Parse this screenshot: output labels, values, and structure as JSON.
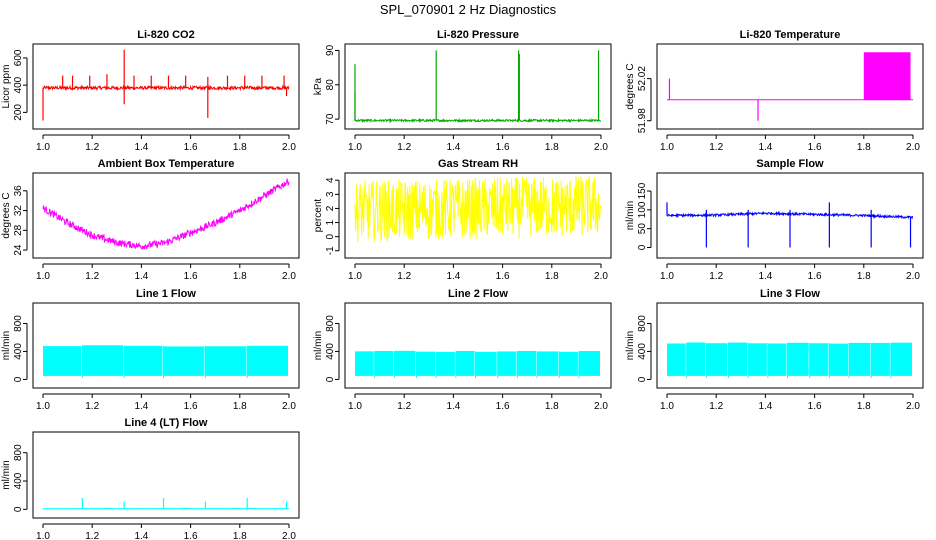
{
  "title": "SPL_070901  2 Hz Diagnostics",
  "chart_data": [
    {
      "id": "co2",
      "type": "line",
      "title": "Li-820 CO2",
      "xlabel": "",
      "ylabel": "Licor ppm",
      "color": "#ff0000",
      "xlim": [
        1.0,
        2.0
      ],
      "ylim": [
        100,
        680
      ],
      "xticks": [
        "1.0",
        "1.2",
        "1.4",
        "1.6",
        "1.8",
        "2.0"
      ],
      "yticks": [
        "200",
        "400",
        "600"
      ],
      "series": [
        {
          "name": "CO2",
          "base": 380,
          "noise": 12,
          "spikes": [
            [
              1.0,
              140
            ],
            [
              1.08,
              470
            ],
            [
              1.12,
              470
            ],
            [
              1.19,
              470
            ],
            [
              1.26,
              480
            ],
            [
              1.33,
              660
            ],
            [
              1.33,
              260
            ],
            [
              1.37,
              470
            ],
            [
              1.44,
              470
            ],
            [
              1.51,
              470
            ],
            [
              1.58,
              470
            ],
            [
              1.67,
              160
            ],
            [
              1.67,
              460
            ],
            [
              1.75,
              470
            ],
            [
              1.82,
              470
            ],
            [
              1.89,
              470
            ],
            [
              1.98,
              470
            ],
            [
              1.99,
              320
            ]
          ]
        }
      ]
    },
    {
      "id": "pressure",
      "type": "line",
      "title": "Li-820 Pressure",
      "xlabel": "",
      "ylabel": "kPa",
      "color": "#00aa00",
      "xlim": [
        1.0,
        2.0
      ],
      "ylim": [
        68,
        91
      ],
      "xticks": [
        "1.0",
        "1.2",
        "1.4",
        "1.6",
        "1.8",
        "2.0"
      ],
      "yticks": [
        "70",
        "80",
        "90"
      ],
      "series": [
        {
          "name": "Pressure",
          "base": 69.6,
          "noise": 0.3,
          "spikes": [
            [
              1.0,
              86
            ],
            [
              1.0,
              78
            ],
            [
              1.33,
              90
            ],
            [
              1.665,
              90
            ],
            [
              1.668,
              89
            ],
            [
              1.99,
              90
            ]
          ]
        }
      ]
    },
    {
      "id": "temp820",
      "type": "line",
      "title": "Li-820 Temperature",
      "xlabel": "",
      "ylabel": "degrees C",
      "color": "#ff00ff",
      "xlim": [
        1.0,
        2.0
      ],
      "ylim": [
        51.975,
        52.05
      ],
      "xticks": [
        "1.0",
        "1.2",
        "1.4",
        "1.6",
        "1.8",
        "2.0"
      ],
      "yticks": [
        "51.98",
        "52.02"
      ],
      "series": [
        {
          "name": "Temperature",
          "base": 52.0,
          "noise": 0,
          "spikes": [
            [
              1.01,
              52.02
            ],
            [
              1.37,
              51.98
            ]
          ],
          "band": {
            "x0": 1.8,
            "x1": 1.99,
            "low": 52.0,
            "high": 52.045
          }
        }
      ]
    },
    {
      "id": "boxtemp",
      "type": "line",
      "title": "Ambient Box Temperature",
      "xlabel": "",
      "ylabel": "degrees C",
      "color": "#ff00ff",
      "xlim": [
        1.0,
        2.0
      ],
      "ylim": [
        23,
        39
      ],
      "xticks": [
        "1.0",
        "1.2",
        "1.4",
        "1.6",
        "1.8",
        "2.0"
      ],
      "yticks": [
        "24",
        "28",
        "32",
        "36"
      ],
      "series": [
        {
          "name": "Box Temperature",
          "points": [
            [
              1.0,
              32.5
            ],
            [
              1.1,
              29.5
            ],
            [
              1.2,
              27.0
            ],
            [
              1.3,
              25.5
            ],
            [
              1.4,
              24.8
            ],
            [
              1.5,
              25.5
            ],
            [
              1.6,
              27.5
            ],
            [
              1.7,
              29.5
            ],
            [
              1.8,
              32.0
            ],
            [
              1.9,
              35.0
            ],
            [
              2.0,
              38.0
            ]
          ],
          "noise": 0.7
        }
      ]
    },
    {
      "id": "rh",
      "type": "line",
      "title": "Gas Stream RH",
      "xlabel": "",
      "ylabel": "percent",
      "color": "#ffff00",
      "xlim": [
        1.0,
        2.0
      ],
      "ylim": [
        -1.3,
        4.3
      ],
      "xticks": [
        "1.0",
        "1.2",
        "1.4",
        "1.6",
        "1.8",
        "2.0"
      ],
      "yticks": [
        "-1",
        "0",
        "1",
        "2",
        "3",
        "4"
      ],
      "series": [
        {
          "name": "RH",
          "base": 1.8,
          "noise": 2.2,
          "trend": 0.4
        }
      ]
    },
    {
      "id": "sample",
      "type": "line",
      "title": "Sample Flow",
      "xlabel": "",
      "ylabel": "ml/min",
      "color": "#0000ff",
      "xlim": [
        1.0,
        2.0
      ],
      "ylim": [
        -20,
        190
      ],
      "xticks": [
        "1.0",
        "1.2",
        "1.4",
        "1.6",
        "1.8",
        "2.0"
      ],
      "yticks": [
        "0",
        "50",
        "100",
        "150"
      ],
      "series": [
        {
          "name": "Sample Flow",
          "points": [
            [
              1.0,
              85
            ],
            [
              1.2,
              86
            ],
            [
              1.4,
              91
            ],
            [
              1.6,
              88
            ],
            [
              1.8,
              85
            ],
            [
              2.0,
              80
            ]
          ],
          "noise": 3,
          "spikes": [
            [
              1.0,
              120
            ],
            [
              1.16,
              0
            ],
            [
              1.16,
              100
            ],
            [
              1.33,
              0
            ],
            [
              1.33,
              100
            ],
            [
              1.5,
              0
            ],
            [
              1.5,
              100
            ],
            [
              1.66,
              0
            ],
            [
              1.66,
              120
            ],
            [
              1.83,
              0
            ],
            [
              1.83,
              100
            ],
            [
              1.99,
              0
            ]
          ]
        }
      ]
    },
    {
      "id": "line1",
      "type": "area",
      "title": "Line 1 Flow",
      "xlabel": "",
      "ylabel": "ml/min",
      "color": "#00ffff",
      "xlim": [
        1.0,
        2.0
      ],
      "ylim": [
        -80,
        1050
      ],
      "xticks": [
        "1.0",
        "1.2",
        "1.4",
        "1.6",
        "1.8",
        "2.0"
      ],
      "yticks": [
        "0",
        "400",
        "800"
      ],
      "series": [
        {
          "name": "Line 1",
          "low": 50,
          "high": 480,
          "gaps": [
            1.16,
            1.33,
            1.49,
            1.66,
            1.83
          ]
        }
      ]
    },
    {
      "id": "line2",
      "type": "area",
      "title": "Line 2 Flow",
      "xlabel": "",
      "ylabel": "ml/min",
      "color": "#00ffff",
      "xlim": [
        1.0,
        2.0
      ],
      "ylim": [
        -80,
        1050
      ],
      "xticks": [
        "1.0",
        "1.2",
        "1.4",
        "1.6",
        "1.8",
        "2.0"
      ],
      "yticks": [
        "0",
        "400",
        "800"
      ],
      "series": [
        {
          "name": "Line 2",
          "low": 50,
          "high": 400,
          "gaps": [
            1.08,
            1.16,
            1.25,
            1.33,
            1.41,
            1.49,
            1.58,
            1.66,
            1.74,
            1.83,
            1.91
          ]
        }
      ]
    },
    {
      "id": "line3",
      "type": "area",
      "title": "Line 3 Flow",
      "xlabel": "",
      "ylabel": "ml/min",
      "color": "#00ffff",
      "xlim": [
        1.0,
        2.0
      ],
      "ylim": [
        -80,
        1050
      ],
      "xticks": [
        "1.0",
        "1.2",
        "1.4",
        "1.6",
        "1.8",
        "2.0"
      ],
      "yticks": [
        "0",
        "400",
        "800"
      ],
      "series": [
        {
          "name": "Line 3",
          "low": 50,
          "high": 520,
          "gaps": [
            1.08,
            1.16,
            1.25,
            1.33,
            1.41,
            1.49,
            1.58,
            1.66,
            1.74,
            1.83,
            1.91
          ]
        }
      ]
    },
    {
      "id": "line4",
      "type": "line",
      "title": "Line 4 (LT) Flow",
      "xlabel": "",
      "ylabel": "ml/min",
      "color": "#00ffff",
      "xlim": [
        1.0,
        2.0
      ],
      "ylim": [
        -80,
        1050
      ],
      "xticks": [
        "1.0",
        "1.2",
        "1.4",
        "1.6",
        "1.8",
        "2.0"
      ],
      "yticks": [
        "0",
        "400",
        "800"
      ],
      "series": [
        {
          "name": "Line 4",
          "base": 10,
          "noise": 2,
          "spikes": [
            [
              1.16,
              160
            ],
            [
              1.33,
              110
            ],
            [
              1.49,
              160
            ],
            [
              1.66,
              110
            ],
            [
              1.83,
              160
            ],
            [
              1.99,
              110
            ]
          ]
        }
      ]
    }
  ]
}
